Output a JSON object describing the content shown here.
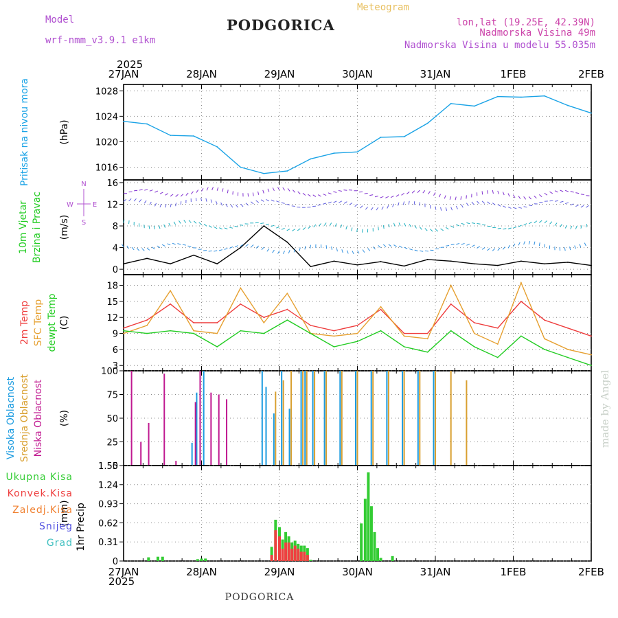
{
  "header": {
    "model_label": "Model",
    "model_name": "wrf-nmm_v3.9.1 e1km",
    "station": "PODGORICA",
    "product": "Meteogram",
    "lonlat": "lon,lat (19.25E, 42.39N)",
    "elevation": "Nadmorska Visina 49m",
    "model_elevation": "Nadmorska Visina u modelu 55.035m",
    "credit": "made by Angel",
    "footer_station": "PODGORICA"
  },
  "colors": {
    "pressure": "#1aa3e6",
    "temp2m": "#ee3b3b",
    "sfctemp": "#e6a030",
    "dewpt": "#22cc22",
    "cloud_high": "#1a9be0",
    "cloud_mid": "#d9a030",
    "cloud_low": "#c01890",
    "precip_total": "#33cc33",
    "precip_conv": "#ee4040",
    "precip_ice": "#f08030",
    "precip_snow": "#5050e0",
    "precip_grad": "#40c0c0",
    "header_purple": "#b050d0",
    "header_orange": "#e8c060",
    "header_pink": "#cc44aa"
  },
  "time_axis": {
    "year_label": "2025",
    "days": [
      "27JAN",
      "28JAN",
      "29JAN",
      "30JAN",
      "31JAN",
      "1FEB",
      "2FEB"
    ]
  },
  "chart_data": [
    {
      "type": "line",
      "id": "pressure",
      "ylabel": "Pritisak na nivou mora",
      "unit": "(hPa)",
      "ylim": [
        1014,
        1029
      ],
      "yticks": [
        1016,
        1020,
        1024,
        1028
      ],
      "x": [
        0,
        0.3,
        0.6,
        0.9,
        1.2,
        1.5,
        1.8,
        2.1,
        2.4,
        2.7,
        3.0,
        3.3,
        3.6,
        3.9,
        4.2,
        4.5,
        4.8,
        5.1,
        5.4,
        5.7,
        6.0
      ],
      "values": [
        1023.2,
        1022.8,
        1021.0,
        1020.9,
        1019.2,
        1016.0,
        1015.0,
        1015.4,
        1017.3,
        1018.2,
        1018.4,
        1020.7,
        1020.8,
        1022.9,
        1026.0,
        1025.6,
        1027.1,
        1027.0,
        1027.2,
        1025.7,
        1024.5
      ]
    },
    {
      "type": "line",
      "id": "wind",
      "ylabel": [
        "10m Vjetar",
        "Brzina i Pravac"
      ],
      "unit": "(m/s)",
      "ylim": [
        -1,
        16.5
      ],
      "yticks": [
        0,
        4,
        8,
        12,
        16
      ],
      "compass": [
        "N",
        "E",
        "S",
        "W"
      ],
      "x": [
        0,
        0.3,
        0.6,
        0.9,
        1.2,
        1.5,
        1.8,
        2.1,
        2.4,
        2.7,
        3.0,
        3.3,
        3.6,
        3.9,
        4.2,
        4.5,
        4.8,
        5.1,
        5.4,
        5.7,
        6.0
      ],
      "values": [
        1.0,
        2.0,
        1.0,
        2.6,
        1.0,
        4.0,
        8.0,
        5.0,
        0.5,
        1.5,
        0.8,
        1.4,
        0.6,
        1.8,
        1.5,
        1.0,
        0.7,
        1.5,
        1.0,
        1.3,
        0.7
      ]
    },
    {
      "type": "line",
      "id": "temperature",
      "ylabel": [
        "2m Temp",
        "SFC Temp",
        "dewpt Temp"
      ],
      "unit": "(C)",
      "ylim": [
        2,
        20
      ],
      "yticks": [
        3,
        6,
        9,
        12,
        15,
        18
      ],
      "x": [
        0,
        0.3,
        0.6,
        0.9,
        1.2,
        1.5,
        1.8,
        2.1,
        2.4,
        2.7,
        3.0,
        3.3,
        3.6,
        3.9,
        4.2,
        4.5,
        4.8,
        5.1,
        5.4,
        5.7,
        6.0
      ],
      "series": [
        {
          "name": "2m Temp",
          "values": [
            10.0,
            11.5,
            14.5,
            11.0,
            11.0,
            14.5,
            12.0,
            13.5,
            10.5,
            9.5,
            10.5,
            13.5,
            9.0,
            9.0,
            14.5,
            11.0,
            10.0,
            15.0,
            11.5,
            10.0,
            8.5
          ]
        },
        {
          "name": "SFC Temp",
          "values": [
            9.0,
            10.5,
            17.0,
            9.5,
            9.0,
            17.5,
            11.0,
            16.5,
            9.0,
            8.5,
            9.0,
            14.0,
            8.5,
            8.0,
            18.0,
            9.0,
            7.0,
            18.5,
            8.0,
            6.0,
            5.0
          ]
        },
        {
          "name": "dewpt Temp",
          "values": [
            9.5,
            9.0,
            9.5,
            9.0,
            6.5,
            9.5,
            9.0,
            11.5,
            9.0,
            6.5,
            7.5,
            9.5,
            6.5,
            5.5,
            9.5,
            6.5,
            4.5,
            8.5,
            6.0,
            4.5,
            3.0
          ]
        }
      ]
    },
    {
      "type": "bar",
      "id": "clouds",
      "ylabel": [
        "Visoka Oblacnost",
        "Srednja Oblacnost",
        "Niska Oblacnost"
      ],
      "unit": "(%)",
      "ylim": [
        0,
        100
      ],
      "yticks": [
        0,
        25,
        50,
        75,
        100
      ],
      "x": [
        0.08,
        0.2,
        0.3,
        0.5,
        0.65,
        0.9,
        0.96,
        1.05,
        1.1,
        1.2,
        1.3,
        1.5,
        1.8,
        1.85,
        1.95,
        2.05,
        2.15,
        2.3,
        2.35,
        2.45,
        2.6,
        2.8,
        3.0,
        3.2,
        3.4,
        3.6,
        3.8,
        4.0,
        4.2,
        4.4,
        4.6
      ],
      "series": [
        {
          "name": "Visoka Oblacnost",
          "values": [
            0,
            0,
            0,
            0,
            0,
            24,
            77,
            100,
            0,
            0,
            0,
            0,
            100,
            83,
            55,
            100,
            60,
            100,
            100,
            100,
            100,
            100,
            100,
            100,
            100,
            100,
            100,
            100,
            0,
            0,
            0
          ]
        },
        {
          "name": "Srednja Oblacnost",
          "values": [
            0,
            0,
            0,
            0,
            0,
            0,
            0,
            0,
            0,
            0,
            0,
            0,
            0,
            0,
            78,
            90,
            100,
            100,
            100,
            100,
            100,
            100,
            100,
            100,
            100,
            100,
            100,
            100,
            100,
            90,
            0
          ]
        },
        {
          "name": "Niska Oblacnost",
          "values": [
            100,
            25,
            45,
            97,
            5,
            67,
            100,
            0,
            77,
            75,
            70,
            0,
            0,
            0,
            0,
            0,
            0,
            0,
            0,
            0,
            0,
            0,
            0,
            0,
            0,
            0,
            0,
            0,
            0,
            0,
            0
          ]
        }
      ]
    },
    {
      "type": "bar",
      "id": "precip",
      "ylabel": "1hr Precip",
      "unit": "(mm)",
      "ylim": [
        0,
        1.55
      ],
      "yticks": [
        0,
        0.31,
        0.62,
        0.93,
        1.24,
        1.55
      ],
      "legend": [
        "Ukupna Kisa",
        "Konvek.Kisa",
        "Zaledj.Kisa",
        "Snijeg",
        "Grad"
      ],
      "x": [
        0.32,
        0.44,
        0.5,
        0.95,
        1.0,
        1.05,
        1.9,
        1.95,
        2.0,
        2.04,
        2.08,
        2.12,
        2.16,
        2.2,
        2.24,
        2.28,
        2.32,
        2.36,
        2.4,
        3.05,
        3.1,
        3.14,
        3.18,
        3.22,
        3.26,
        3.3,
        3.45
      ],
      "series": [
        {
          "name": "Ukupna Kisa",
          "values": [
            0.06,
            0.07,
            0.07,
            0.03,
            0.04,
            0.04,
            0.23,
            0.67,
            0.55,
            0.35,
            0.47,
            0.4,
            0.3,
            0.33,
            0.28,
            0.25,
            0.25,
            0.21,
            0.02,
            0.61,
            1.01,
            1.44,
            0.89,
            0.47,
            0.21,
            0.05,
            0.08
          ]
        },
        {
          "name": "Konvek.Kisa",
          "values": [
            0,
            0,
            0,
            0,
            0,
            0,
            0.1,
            0.5,
            0.4,
            0.2,
            0.3,
            0.3,
            0.2,
            0.25,
            0.2,
            0.15,
            0.15,
            0.1,
            0,
            0,
            0,
            0,
            0,
            0,
            0,
            0,
            0
          ]
        }
      ]
    }
  ]
}
